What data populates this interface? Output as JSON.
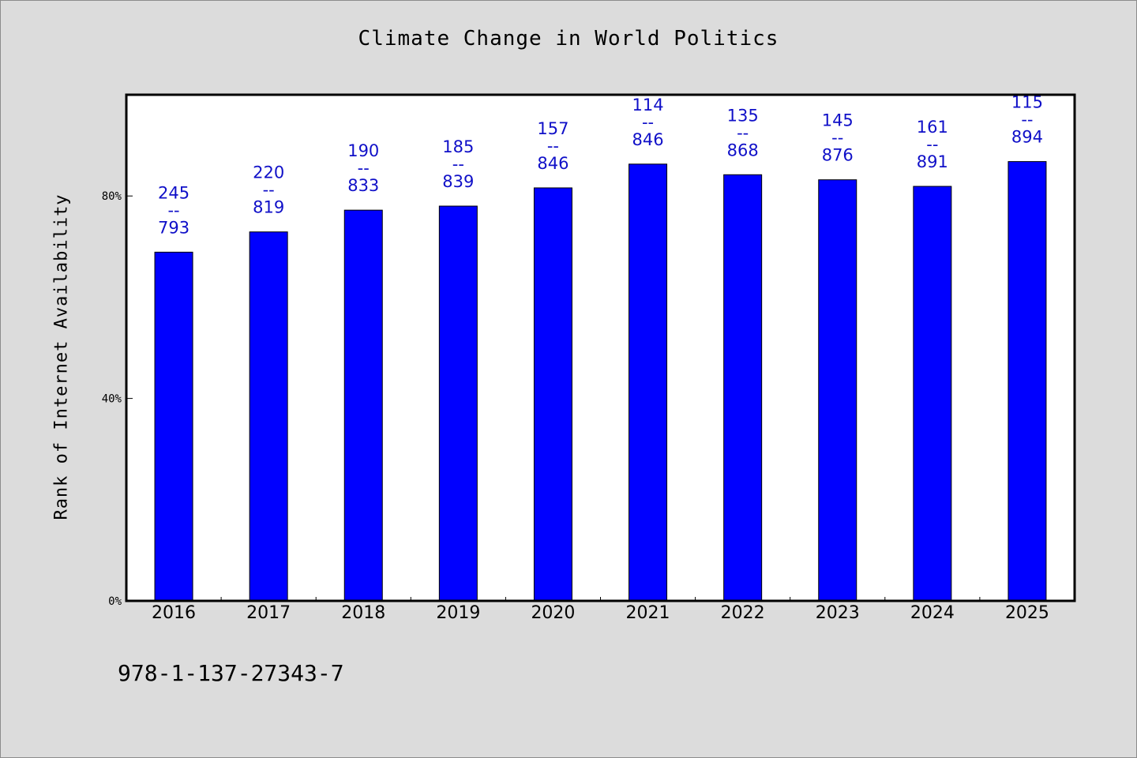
{
  "chart_data": {
    "type": "bar",
    "title": "Climate Change in World Politics",
    "ylabel": "Rank of Internet Availability",
    "xlabel": "",
    "categories": [
      "2016",
      "2017",
      "2018",
      "2019",
      "2020",
      "2021",
      "2022",
      "2023",
      "2024",
      "2025"
    ],
    "values": [
      68.9,
      72.9,
      77.2,
      78.0,
      81.6,
      86.3,
      84.2,
      83.2,
      81.9,
      86.8
    ],
    "data_labels": [
      [
        "245",
        "--",
        "793"
      ],
      [
        "220",
        "--",
        "819"
      ],
      [
        "190",
        "--",
        "833"
      ],
      [
        "185",
        "--",
        "839"
      ],
      [
        "157",
        "--",
        "846"
      ],
      [
        "114",
        "--",
        "846"
      ],
      [
        "135",
        "--",
        "868"
      ],
      [
        "145",
        "--",
        "876"
      ],
      [
        "161",
        "--",
        "891"
      ],
      [
        "115",
        "--",
        "894"
      ]
    ],
    "ylim": [
      0,
      100
    ],
    "yticks": [
      0,
      40,
      80
    ],
    "ytick_labels": [
      "0%",
      "40%",
      "80%"
    ],
    "grid": false,
    "legend": "none",
    "colors": {
      "bar": "#0000ff",
      "bar_edge": "#000000",
      "label": "#1010c8",
      "plot_bg": "#ffffff",
      "figure_bg": "#dcdcdc"
    }
  },
  "footer": {
    "isbn": "978-1-137-27343-7"
  }
}
